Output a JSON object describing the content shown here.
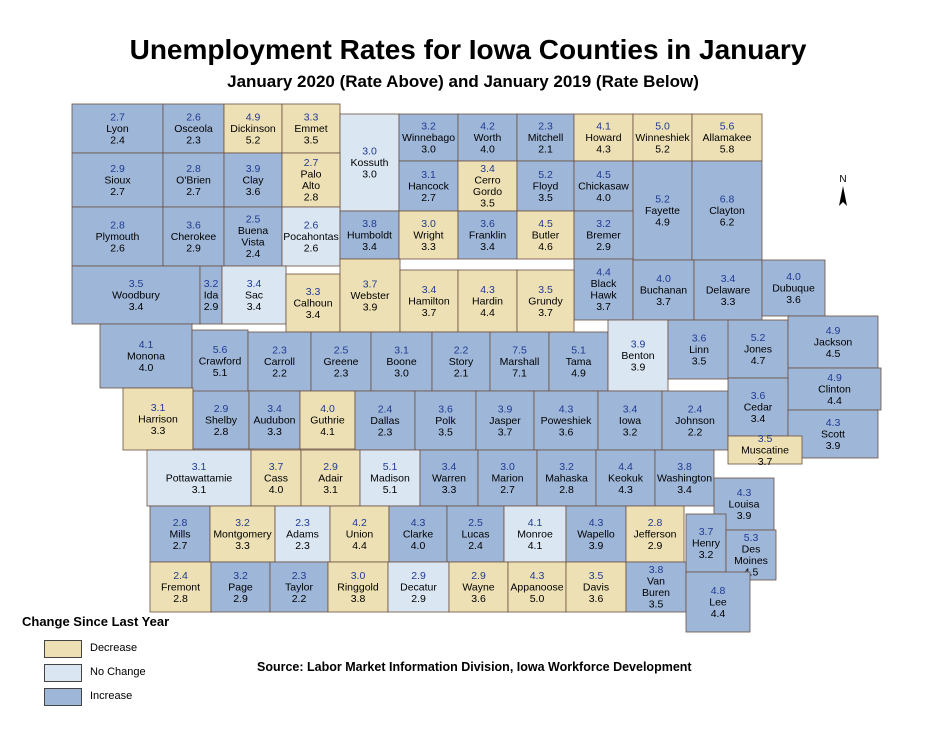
{
  "title": "Unemployment Rates for Iowa Counties in January",
  "subtitle": "January 2020 (Rate Above) and January 2019 (Rate Below)",
  "north_label": "N",
  "legend": {
    "title": "Change Since Last Year",
    "items": [
      {
        "label": "Decrease",
        "color": "#ede0b5"
      },
      {
        "label": "No Change",
        "color": "#dae6f2"
      },
      {
        "label": "Increase",
        "color": "#9eb6d8"
      }
    ]
  },
  "source": "Source: Labor Market Information Division, Iowa Workforce Development",
  "counties": [
    {
      "name": "Lyon",
      "r2020": "2.7",
      "r2019": "2.4",
      "change": "increase"
    },
    {
      "name": "Osceola",
      "r2020": "2.6",
      "r2019": "2.3",
      "change": "increase"
    },
    {
      "name": "Dickinson",
      "r2020": "4.9",
      "r2019": "5.2",
      "change": "decrease"
    },
    {
      "name": "Emmet",
      "r2020": "3.3",
      "r2019": "3.5",
      "change": "decrease"
    },
    {
      "name": "Kossuth",
      "r2020": "3.0",
      "r2019": "3.0",
      "change": "nochange"
    },
    {
      "name": "Winnebago",
      "r2020": "3.2",
      "r2019": "3.0",
      "change": "increase"
    },
    {
      "name": "Worth",
      "r2020": "4.2",
      "r2019": "4.0",
      "change": "increase"
    },
    {
      "name": "Mitchell",
      "r2020": "2.3",
      "r2019": "2.1",
      "change": "increase"
    },
    {
      "name": "Howard",
      "r2020": "4.1",
      "r2019": "4.3",
      "change": "decrease"
    },
    {
      "name": "Winneshiek",
      "r2020": "5.0",
      "r2019": "5.2",
      "change": "decrease"
    },
    {
      "name": "Allamakee",
      "r2020": "5.6",
      "r2019": "5.8",
      "change": "decrease"
    },
    {
      "name": "Sioux",
      "r2020": "2.9",
      "r2019": "2.7",
      "change": "increase"
    },
    {
      "name": "O'Brien",
      "r2020": "2.8",
      "r2019": "2.7",
      "change": "increase"
    },
    {
      "name": "Clay",
      "r2020": "3.9",
      "r2019": "3.6",
      "change": "increase"
    },
    {
      "name": "Palo Alto",
      "r2020": "2.7",
      "r2019": "2.8",
      "change": "decrease"
    },
    {
      "name": "Hancock",
      "r2020": "3.1",
      "r2019": "2.7",
      "change": "increase"
    },
    {
      "name": "Cerro Gordo",
      "r2020": "3.4",
      "r2019": "3.5",
      "change": "decrease"
    },
    {
      "name": "Floyd",
      "r2020": "5.2",
      "r2019": "3.5",
      "change": "increase"
    },
    {
      "name": "Chickasaw",
      "r2020": "4.5",
      "r2019": "4.0",
      "change": "increase"
    },
    {
      "name": "Fayette",
      "r2020": "5.2",
      "r2019": "4.9",
      "change": "increase"
    },
    {
      "name": "Clayton",
      "r2020": "6.8",
      "r2019": "6.2",
      "change": "increase"
    },
    {
      "name": "Plymouth",
      "r2020": "2.8",
      "r2019": "2.6",
      "change": "increase"
    },
    {
      "name": "Cherokee",
      "r2020": "3.6",
      "r2019": "2.9",
      "change": "increase"
    },
    {
      "name": "Buena Vista",
      "r2020": "2.5",
      "r2019": "2.4",
      "change": "increase"
    },
    {
      "name": "Pocahontas",
      "r2020": "2.6",
      "r2019": "2.6",
      "change": "nochange"
    },
    {
      "name": "Humboldt",
      "r2020": "3.8",
      "r2019": "3.4",
      "change": "increase"
    },
    {
      "name": "Wright",
      "r2020": "3.0",
      "r2019": "3.3",
      "change": "decrease"
    },
    {
      "name": "Franklin",
      "r2020": "3.6",
      "r2019": "3.4",
      "change": "increase"
    },
    {
      "name": "Butler",
      "r2020": "4.5",
      "r2019": "4.6",
      "change": "decrease"
    },
    {
      "name": "Bremer",
      "r2020": "3.2",
      "r2019": "2.9",
      "change": "increase"
    },
    {
      "name": "Black Hawk",
      "r2020": "4.4",
      "r2019": "3.7",
      "change": "increase"
    },
    {
      "name": "Buchanan",
      "r2020": "4.0",
      "r2019": "3.7",
      "change": "increase"
    },
    {
      "name": "Delaware",
      "r2020": "3.4",
      "r2019": "3.3",
      "change": "increase"
    },
    {
      "name": "Dubuque",
      "r2020": "4.0",
      "r2019": "3.6",
      "change": "increase"
    },
    {
      "name": "Woodbury",
      "r2020": "3.5",
      "r2019": "3.4",
      "change": "increase"
    },
    {
      "name": "Ida",
      "r2020": "3.2",
      "r2019": "2.9",
      "change": "increase"
    },
    {
      "name": "Sac",
      "r2020": "3.4",
      "r2019": "3.4",
      "change": "nochange"
    },
    {
      "name": "Calhoun",
      "r2020": "3.3",
      "r2019": "3.4",
      "change": "decrease"
    },
    {
      "name": "Webster",
      "r2020": "3.7",
      "r2019": "3.9",
      "change": "decrease"
    },
    {
      "name": "Hamilton",
      "r2020": "3.4",
      "r2019": "3.7",
      "change": "decrease"
    },
    {
      "name": "Hardin",
      "r2020": "4.3",
      "r2019": "4.4",
      "change": "decrease"
    },
    {
      "name": "Grundy",
      "r2020": "3.5",
      "r2019": "3.7",
      "change": "decrease"
    },
    {
      "name": "Monona",
      "r2020": "4.1",
      "r2019": "4.0",
      "change": "increase"
    },
    {
      "name": "Crawford",
      "r2020": "5.6",
      "r2019": "5.1",
      "change": "increase"
    },
    {
      "name": "Carroll",
      "r2020": "2.3",
      "r2019": "2.2",
      "change": "increase"
    },
    {
      "name": "Greene",
      "r2020": "2.5",
      "r2019": "2.3",
      "change": "increase"
    },
    {
      "name": "Boone",
      "r2020": "3.1",
      "r2019": "3.0",
      "change": "increase"
    },
    {
      "name": "Story",
      "r2020": "2.2",
      "r2019": "2.1",
      "change": "increase"
    },
    {
      "name": "Marshall",
      "r2020": "7.5",
      "r2019": "7.1",
      "change": "increase"
    },
    {
      "name": "Tama",
      "r2020": "5.1",
      "r2019": "4.9",
      "change": "increase"
    },
    {
      "name": "Benton",
      "r2020": "3.9",
      "r2019": "3.9",
      "change": "nochange"
    },
    {
      "name": "Linn",
      "r2020": "3.6",
      "r2019": "3.5",
      "change": "increase"
    },
    {
      "name": "Jones",
      "r2020": "5.2",
      "r2019": "4.7",
      "change": "increase"
    },
    {
      "name": "Jackson",
      "r2020": "4.9",
      "r2019": "4.5",
      "change": "increase"
    },
    {
      "name": "Clinton",
      "r2020": "4.9",
      "r2019": "4.4",
      "change": "increase"
    },
    {
      "name": "Harrison",
      "r2020": "3.1",
      "r2019": "3.3",
      "change": "decrease"
    },
    {
      "name": "Shelby",
      "r2020": "2.9",
      "r2019": "2.8",
      "change": "increase"
    },
    {
      "name": "Audubon",
      "r2020": "3.4",
      "r2019": "3.3",
      "change": "increase"
    },
    {
      "name": "Guthrie",
      "r2020": "4.0",
      "r2019": "4.1",
      "change": "decrease"
    },
    {
      "name": "Dallas",
      "r2020": "2.4",
      "r2019": "2.3",
      "change": "increase"
    },
    {
      "name": "Polk",
      "r2020": "3.6",
      "r2019": "3.5",
      "change": "increase"
    },
    {
      "name": "Jasper",
      "r2020": "3.9",
      "r2019": "3.7",
      "change": "increase"
    },
    {
      "name": "Poweshiek",
      "r2020": "4.3",
      "r2019": "3.6",
      "change": "increase"
    },
    {
      "name": "Iowa",
      "r2020": "3.4",
      "r2019": "3.2",
      "change": "increase"
    },
    {
      "name": "Johnson",
      "r2020": "2.4",
      "r2019": "2.2",
      "change": "increase"
    },
    {
      "name": "Cedar",
      "r2020": "3.6",
      "r2019": "3.4",
      "change": "increase"
    },
    {
      "name": "Scott",
      "r2020": "4.3",
      "r2019": "3.9",
      "change": "increase"
    },
    {
      "name": "Pottawattamie",
      "r2020": "3.1",
      "r2019": "3.1",
      "change": "nochange"
    },
    {
      "name": "Cass",
      "r2020": "3.7",
      "r2019": "4.0",
      "change": "decrease"
    },
    {
      "name": "Adair",
      "r2020": "2.9",
      "r2019": "3.1",
      "change": "decrease"
    },
    {
      "name": "Madison",
      "r2020": "5.1",
      "r2019": "5.1",
      "change": "nochange"
    },
    {
      "name": "Warren",
      "r2020": "3.4",
      "r2019": "3.3",
      "change": "increase"
    },
    {
      "name": "Marion",
      "r2020": "3.0",
      "r2019": "2.7",
      "change": "increase"
    },
    {
      "name": "Mahaska",
      "r2020": "3.2",
      "r2019": "2.8",
      "change": "increase"
    },
    {
      "name": "Keokuk",
      "r2020": "4.4",
      "r2019": "4.3",
      "change": "increase"
    },
    {
      "name": "Washington",
      "r2020": "3.8",
      "r2019": "3.4",
      "change": "increase"
    },
    {
      "name": "Muscatine",
      "r2020": "3.5",
      "r2019": "3.7",
      "change": "decrease"
    },
    {
      "name": "Louisa",
      "r2020": "4.3",
      "r2019": "3.9",
      "change": "increase"
    },
    {
      "name": "Mills",
      "r2020": "2.8",
      "r2019": "2.7",
      "change": "increase"
    },
    {
      "name": "Montgomery",
      "r2020": "3.2",
      "r2019": "3.3",
      "change": "decrease"
    },
    {
      "name": "Adams",
      "r2020": "2.3",
      "r2019": "2.3",
      "change": "nochange"
    },
    {
      "name": "Union",
      "r2020": "4.2",
      "r2019": "4.4",
      "change": "decrease"
    },
    {
      "name": "Clarke",
      "r2020": "4.3",
      "r2019": "4.0",
      "change": "increase"
    },
    {
      "name": "Lucas",
      "r2020": "2.5",
      "r2019": "2.4",
      "change": "increase"
    },
    {
      "name": "Monroe",
      "r2020": "4.1",
      "r2019": "4.1",
      "change": "nochange"
    },
    {
      "name": "Wapello",
      "r2020": "4.3",
      "r2019": "3.9",
      "change": "increase"
    },
    {
      "name": "Jefferson",
      "r2020": "2.8",
      "r2019": "2.9",
      "change": "decrease"
    },
    {
      "name": "Henry",
      "r2020": "3.7",
      "r2019": "3.2",
      "change": "increase"
    },
    {
      "name": "Des Moines",
      "r2020": "5.3",
      "r2019": "4.5",
      "change": "increase"
    },
    {
      "name": "Fremont",
      "r2020": "2.4",
      "r2019": "2.8",
      "change": "decrease"
    },
    {
      "name": "Page",
      "r2020": "3.2",
      "r2019": "2.9",
      "change": "increase"
    },
    {
      "name": "Taylor",
      "r2020": "2.3",
      "r2019": "2.2",
      "change": "increase"
    },
    {
      "name": "Ringgold",
      "r2020": "3.0",
      "r2019": "3.8",
      "change": "decrease"
    },
    {
      "name": "Decatur",
      "r2020": "2.9",
      "r2019": "2.9",
      "change": "nochange"
    },
    {
      "name": "Wayne",
      "r2020": "2.9",
      "r2019": "3.6",
      "change": "decrease"
    },
    {
      "name": "Appanoose",
      "r2020": "4.3",
      "r2019": "5.0",
      "change": "decrease"
    },
    {
      "name": "Davis",
      "r2020": "3.5",
      "r2019": "3.6",
      "change": "decrease"
    },
    {
      "name": "Van Buren",
      "r2020": "3.8",
      "r2019": "3.5",
      "change": "increase"
    },
    {
      "name": "Lee",
      "r2020": "4.8",
      "r2019": "4.4",
      "change": "increase"
    }
  ]
}
